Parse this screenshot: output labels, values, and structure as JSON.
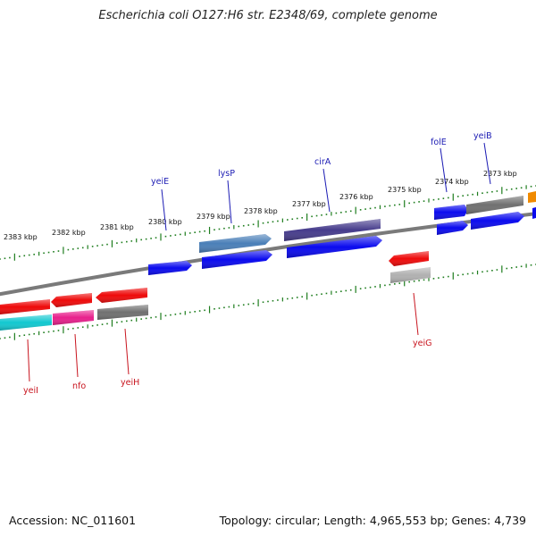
{
  "title": "Escherichia coli O127:H6 str. E2348/69, complete genome",
  "footer": {
    "accession": "Accession: NC_011601",
    "summary": "Topology: circular; Length: 4,965,553 bp; Genes: 4,739"
  },
  "scale_labels": [
    "2383 kbp",
    "2382 kbp",
    "2381 kbp",
    "2380 kbp",
    "2379 kbp",
    "2378 kbp",
    "2377 kbp",
    "2376 kbp",
    "2375 kbp",
    "2374 kbp",
    "2373 kbp"
  ],
  "gene_labels": {
    "forward": [
      "yeiE",
      "lysP",
      "cirA",
      "folE",
      "yeiB"
    ],
    "reverse": [
      "yeiI",
      "nfo",
      "yeiH",
      "yeiG"
    ]
  },
  "colors": {
    "forward_label": "#1c1cb4",
    "reverse_label": "#c8141e",
    "tick": "#1e7d1e",
    "backbone": "#7a7a7a",
    "blue": "#0a0aee",
    "red": "#ee0a0a",
    "gray": "#707070",
    "steelblue": "#4a7fb8",
    "indigo": "#463c8c",
    "cyan": "#12c8d0",
    "magenta": "#e8208c",
    "lightgray": "#b0b0b0",
    "orange": "#f08a00"
  }
}
